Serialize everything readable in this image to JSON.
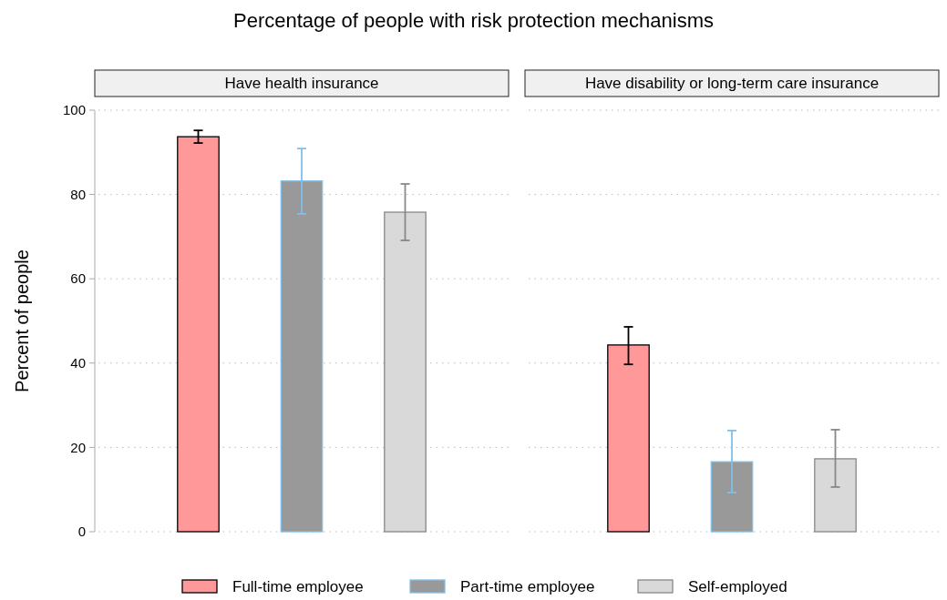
{
  "chart_data": {
    "type": "bar",
    "title": "Percentage of people with risk protection mechanisms",
    "ylabel": "Percent of people",
    "categories": [
      "Have health insurance",
      "Have disability or long-term care insurance"
    ],
    "ylim": [
      0,
      100
    ],
    "yticks": [
      0,
      20,
      40,
      60,
      80,
      100
    ],
    "grid": "y",
    "legend": "bottom",
    "series": [
      {
        "name": "Full-time employee",
        "color": "#ff9999",
        "values": [
          93.7,
          44.3
        ],
        "errors": [
          [
            92.2,
            95.2
          ],
          [
            39.7,
            48.6
          ]
        ]
      },
      {
        "name": "Part-time employee",
        "color": "#999999",
        "values": [
          83.2,
          16.6
        ],
        "errors": [
          [
            75.4,
            90.9
          ],
          [
            9.3,
            24.0
          ]
        ]
      },
      {
        "name": "Self-employed",
        "color": "#d9d9d9",
        "values": [
          75.8,
          17.3
        ],
        "errors": [
          [
            69.1,
            82.5
          ],
          [
            10.6,
            24.2
          ]
        ]
      }
    ]
  }
}
